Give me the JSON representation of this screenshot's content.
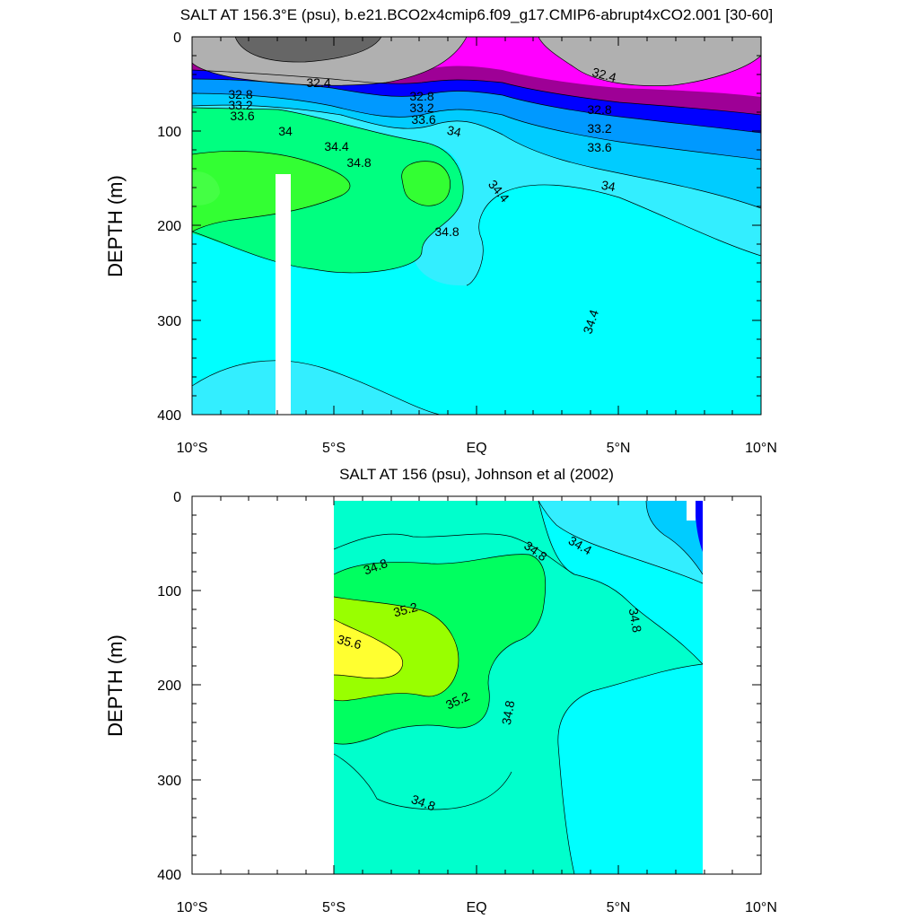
{
  "chart_data": [
    {
      "type": "contour",
      "title": "SALT AT 156.3°E (psu), b.e21.BCO2x4cmip6.f09_g17.CMIP6-abrupt4xCO2.001 [30-60]",
      "ylabel": "DEPTH (m)",
      "xlabel": "",
      "x_range": [
        -10,
        10
      ],
      "y_range": [
        400,
        0
      ],
      "y_inverted": true,
      "x_ticks": [
        "10°S",
        "5°S",
        "EQ",
        "5°N",
        "10°N"
      ],
      "y_ticks": [
        "0",
        "100",
        "200",
        "300",
        "400"
      ],
      "contour_levels": [
        32.0,
        32.4,
        32.8,
        33.2,
        33.6,
        34.0,
        34.4,
        34.8,
        35.2
      ],
      "fill_colors": {
        "below_32.0": "#666666",
        "32.0-32.4": "#b0b0b0",
        "32.4-32.8": "#ff00ff",
        "32.8-33.2": "#9e0096",
        "33.2-33.6": "#0000ff",
        "33.6-34.0": "#0099ff",
        "34.0-34.4": "#00ccff",
        "34.4-34.8": "#00ffff",
        "34.8-35.2": "#00ff80"
      },
      "missing_region": {
        "x": [
          -7.1,
          -6.6
        ],
        "depth": [
          145,
          400
        ]
      },
      "labels": [
        "32.4",
        "32.4",
        "32.8",
        "32.8",
        "32.8",
        "33.2",
        "33.2",
        "33.2",
        "33.6",
        "33.6",
        "33.6",
        "34",
        "34",
        "34",
        "34.4",
        "34.4",
        "34.4",
        "34.8",
        "34.8"
      ]
    },
    {
      "type": "contour",
      "title": "SALT AT 156 (psu), Johnson et al (2002)",
      "ylabel": "DEPTH (m)",
      "xlabel": "",
      "x_range": [
        -10,
        10
      ],
      "y_range": [
        400,
        0
      ],
      "y_inverted": true,
      "x_ticks": [
        "10°S",
        "5°S",
        "EQ",
        "5°N",
        "10°N"
      ],
      "y_ticks": [
        "0",
        "100",
        "200",
        "300",
        "400"
      ],
      "data_x_range": [
        -5,
        8
      ],
      "contour_levels": [
        34.0,
        34.4,
        34.8,
        35.2,
        35.6
      ],
      "fill_colors": {
        "34.0-34.4": "#00ccff",
        "34.4-34.8": "#00ffff",
        "34.8-35.2": "#00ffcc",
        "35.2-35.6": "#00ff60",
        "35.6-36.0": "#99ff00",
        "above_36.0": "#ffff30"
      },
      "labels": [
        "34.4",
        "34.8",
        "34.8",
        "34.8",
        "34.8",
        "34.8",
        "35.2",
        "35.2",
        "35.6"
      ]
    }
  ]
}
